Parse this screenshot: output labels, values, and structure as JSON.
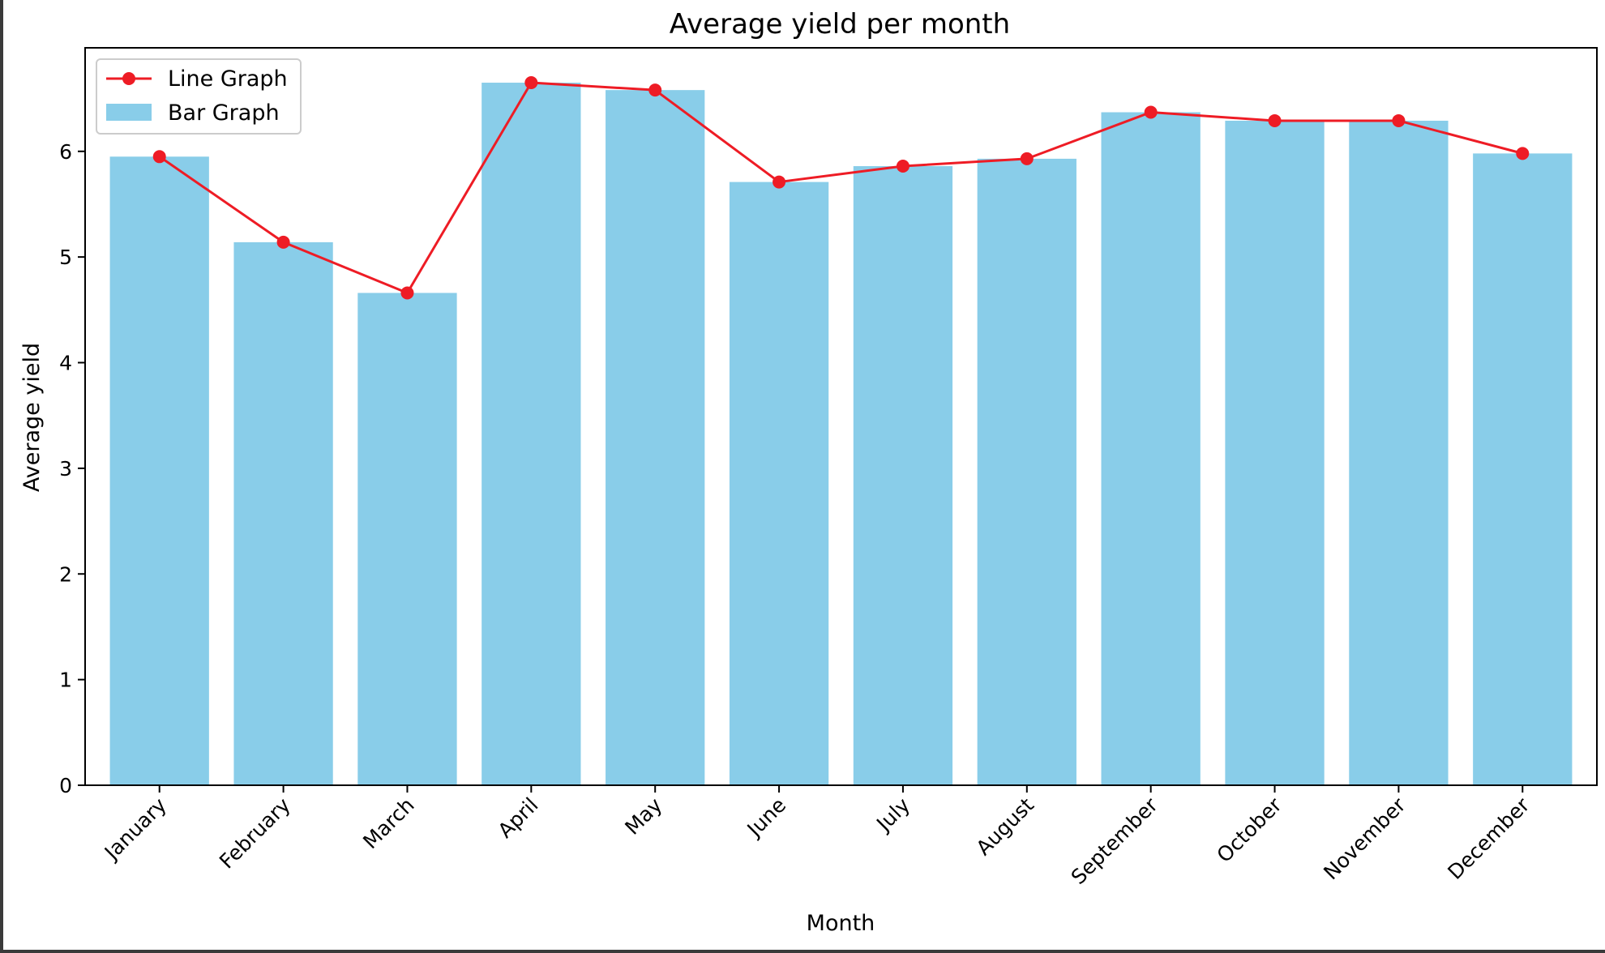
{
  "chart_data": {
    "type": "bar",
    "title": "Average yield per month",
    "xlabel": "Month",
    "ylabel": "Average yield",
    "categories": [
      "January",
      "February",
      "March",
      "April",
      "May",
      "June",
      "July",
      "August",
      "September",
      "October",
      "November",
      "December"
    ],
    "series": [
      {
        "name": "Line Graph",
        "type": "line",
        "color": "#ee1c25",
        "marker": "circle",
        "values": [
          5.95,
          5.14,
          4.66,
          6.65,
          6.58,
          5.71,
          5.86,
          5.93,
          6.37,
          6.29,
          6.29,
          5.98
        ]
      },
      {
        "name": "Bar Graph",
        "type": "bar",
        "color": "#89cde9",
        "values": [
          5.95,
          5.14,
          4.66,
          6.65,
          6.58,
          5.71,
          5.86,
          5.93,
          6.37,
          6.29,
          6.29,
          5.98
        ]
      }
    ],
    "ylim": [
      0,
      6.98
    ],
    "yticks": [
      0,
      1,
      2,
      3,
      4,
      5,
      6
    ],
    "grid": false,
    "legend": "top-left",
    "xtick_rotation": 45
  }
}
